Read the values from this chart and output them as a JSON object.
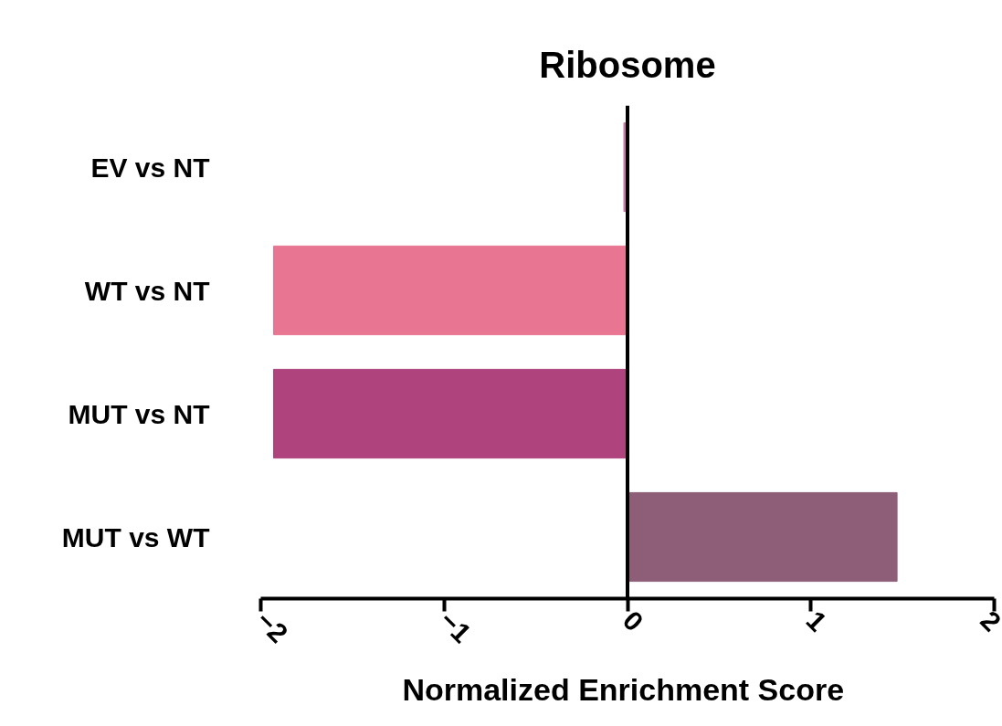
{
  "chart_data": {
    "type": "bar",
    "orientation": "horizontal",
    "title": "Ribosome",
    "xlabel": "Normalized  Enrichment Score",
    "categories": [
      "EV vs NT",
      "WT vs NT",
      "MUT vs NT",
      "MUT vs WT"
    ],
    "values": [
      -0.02,
      -1.93,
      -1.93,
      1.47
    ],
    "colors": [
      "#c77aa8",
      "#e87592",
      "#ae437e",
      "#8e5e78"
    ],
    "xlim": [
      -2,
      2
    ],
    "xticks": [
      -2,
      -1,
      0,
      1,
      2
    ],
    "grid": false,
    "ref_lines": [
      {
        "axis": "x",
        "value": 0,
        "color": "#000000"
      }
    ]
  }
}
